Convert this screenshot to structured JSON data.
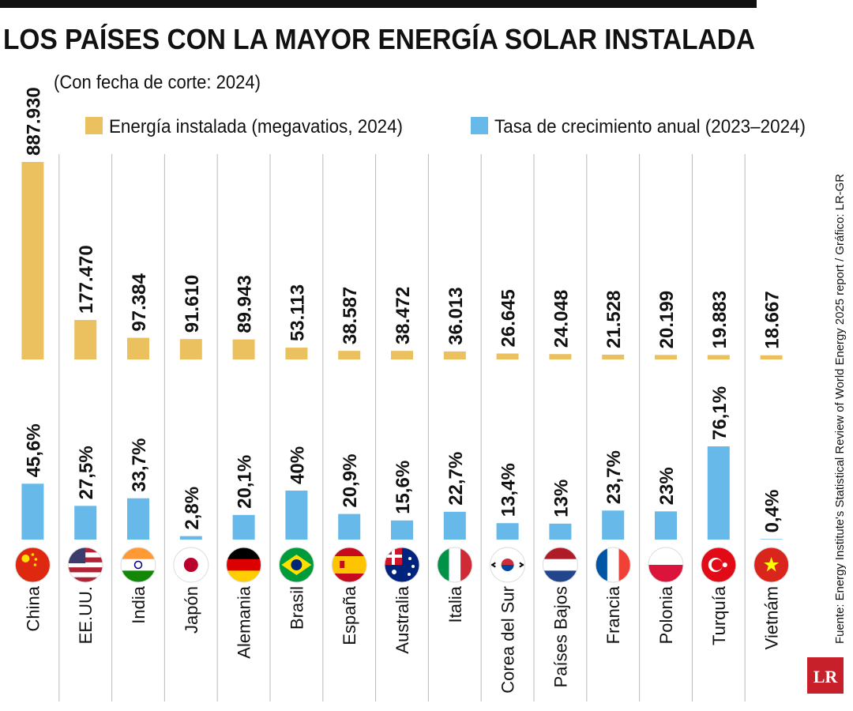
{
  "chart_data": {
    "type": "bar",
    "title": "LOS PAÍSES CON LA MAYOR ENERGÍA SOLAR INSTALADA",
    "subtitle": "(Con fecha de corte: 2024)",
    "source": "Fuente: Energy Institute's Statistical Review of World Energy 2025 report / Gráfico: LR-GR",
    "logo": "LR",
    "categories": [
      "China",
      "EE.UU.",
      "India",
      "Japón",
      "Alemania",
      "Brasil",
      "España",
      "Australia",
      "Italia",
      "Corea del Sur",
      "Países Bajos",
      "Francia",
      "Polonia",
      "Turquía",
      "Vietnám"
    ],
    "series": [
      {
        "name": "Energía instalada (megavatios, 2024)",
        "color": "#ebc160",
        "values": [
          887930,
          177470,
          97384,
          91610,
          89943,
          53113,
          38587,
          38472,
          36013,
          26645,
          24048,
          21528,
          20199,
          19883,
          18667
        ],
        "value_labels": [
          "887.930",
          "177.470",
          "97.384",
          "91.610",
          "89.943",
          "53.113",
          "38.587",
          "38.472",
          "36.013",
          "26.645",
          "24.048",
          "21.528",
          "20.199",
          "19.883",
          "18.667"
        ]
      },
      {
        "name": "Tasa de crecimiento anual (2023–2024)",
        "color": "#66b9e9",
        "values": [
          45.6,
          27.5,
          33.7,
          2.8,
          20.1,
          40,
          20.9,
          15.6,
          22.7,
          13.4,
          13,
          23.7,
          23,
          76.1,
          0.4
        ],
        "value_labels": [
          "45,6%",
          "27,5%",
          "33,7%",
          "2,8%",
          "20,1%",
          "40%",
          "20,9%",
          "15,6%",
          "22,7%",
          "13,4%",
          "13%",
          "23,7%",
          "23%",
          "76,1%",
          "0,4%"
        ]
      }
    ]
  }
}
